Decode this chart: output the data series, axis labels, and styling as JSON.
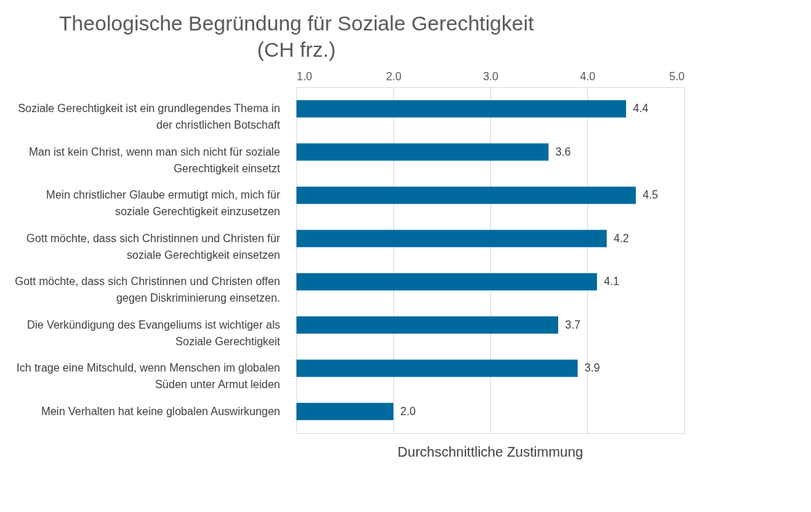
{
  "chart_data": {
    "type": "bar",
    "orientation": "horizontal",
    "title": "Theologische Begründung für Soziale Gerechtigkeit (CH frz.)",
    "xlabel": "Durchschnittliche Zustimmung",
    "categories": [
      "Soziale Gerechtigkeit ist ein grundlegendes Thema in der christlichen Botschaft",
      "Man ist kein Christ, wenn man sich nicht für soziale Gerechtigkeit einsetzt",
      "Mein christlicher Glaube ermutigt mich, mich für soziale Gerechtigkeit einzusetzen",
      "Gott möchte, dass sich Christinnen und Christen für soziale Gerechtigkeit einsetzen",
      "Gott möchte, dass sich Christinnen und Christen offen gegen Diskriminierung einsetzen.",
      "Die Verkündigung des Evangeliums ist wichtiger als Soziale Gerechtigkeit",
      "Ich trage eine Mitschuld, wenn Menschen im globalen Süden unter Armut leiden",
      "Mein Verhalten hat keine globalen Auswirkungen"
    ],
    "values": [
      4.4,
      3.6,
      4.5,
      4.2,
      4.1,
      3.7,
      3.9,
      2.0
    ],
    "value_labels": [
      "4.4",
      "3.6",
      "4.5",
      "4.2",
      "4.1",
      "3.7",
      "3.9",
      "2.0"
    ],
    "color": "#006a9e",
    "xlim": [
      1,
      5
    ],
    "xticks": [
      {
        "value": 1,
        "label": "1.0"
      },
      {
        "value": 2,
        "label": "2.0"
      },
      {
        "value": 3,
        "label": "3.0"
      },
      {
        "value": 4,
        "label": "4.0"
      },
      {
        "value": 5,
        "label": "5.0"
      }
    ],
    "grid": "x"
  }
}
